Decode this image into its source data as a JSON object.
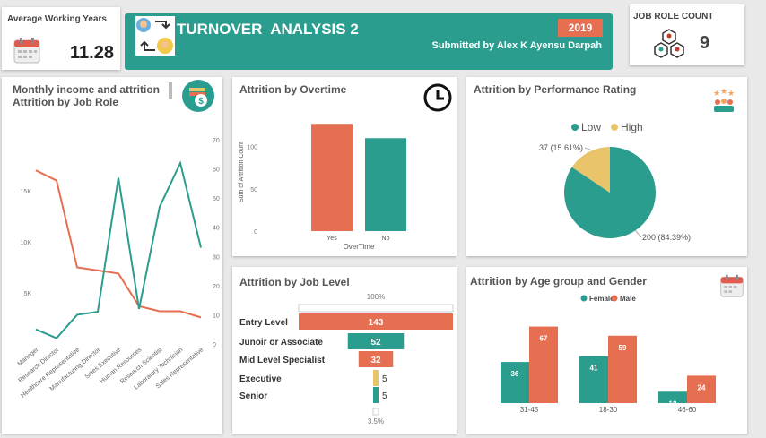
{
  "avg_years": {
    "label": "Average Working Years",
    "value": "11.28"
  },
  "header": {
    "title": "TURNOVER  ANALYSIS 2",
    "year": "2019",
    "submitted": "Submitted by Alex K Ayensu Darpah"
  },
  "role_count": {
    "label": "JOB ROLE COUNT",
    "value": "9"
  },
  "colors": {
    "teal": "#2a9d8f",
    "orange": "#e76f51",
    "yellow": "#e9c46a"
  },
  "chart_data": [
    {
      "type": "line",
      "title": "Monthly income and attrition Attrition by Job Role",
      "categories": [
        "Manager",
        "Research Director",
        "Healthcare Representative",
        "Manufacturing Director",
        "Sales Executive",
        "Human Resources",
        "Research Scientist",
        "Laboratory Technician",
        "Sales Representative"
      ],
      "left_ticks": [
        "15K",
        "10K",
        "5K"
      ],
      "right_ticks": [
        "70",
        "60",
        "50",
        "40",
        "30",
        "20",
        "10",
        "0"
      ],
      "series": [
        {
          "values": [
            17000,
            16000,
            7500,
            7200,
            6900,
            3700,
            3200,
            3200,
            2600
          ],
          "axis": "left",
          "color": "#e76f51"
        },
        {
          "values": [
            5,
            2,
            10,
            11,
            57,
            12,
            47,
            62,
            33
          ],
          "axis": "right",
          "color": "#2a9d8f"
        }
      ],
      "ylim_left": [
        0,
        20000
      ],
      "ylim_right": [
        0,
        70
      ]
    },
    {
      "type": "bar",
      "title": "Attrition by Overtime",
      "categories": [
        "Yes",
        "No"
      ],
      "values": [
        127,
        110
      ],
      "ylabel": "Sum of Attrition Count",
      "xlabel": "OverTime",
      "yticks": [
        "100",
        "50",
        "0"
      ],
      "ylim": [
        0,
        140
      ],
      "colors": [
        "#e76f51",
        "#2a9d8f"
      ]
    },
    {
      "type": "pie",
      "title": "Attrition by Performance Rating",
      "legend": [
        "Low",
        "High"
      ],
      "values": [
        200,
        37
      ],
      "labels": [
        "200 (84.39%)",
        "37 (15.61%)"
      ],
      "colors": [
        "#2a9d8f",
        "#e9c46a"
      ]
    },
    {
      "type": "bar",
      "title": "Attrition by Job Level",
      "categories": [
        "Entry Level",
        "Junoir or Associate",
        "Mid Level Specialist",
        "Executive",
        "Senior"
      ],
      "values": [
        143,
        52,
        32,
        5,
        5
      ],
      "top_label": "100%",
      "bottom_label": "3.5%",
      "colors": [
        "#e76f51",
        "#2a9d8f",
        "#e76f51",
        "#e9c46a",
        "#2a9d8f"
      ]
    },
    {
      "type": "bar",
      "title": "Attrition by Age group and Gender",
      "categories": [
        "31-45",
        "18-30",
        "46-60"
      ],
      "series": [
        {
          "name": "Female",
          "values": [
            36,
            41,
            10
          ],
          "color": "#2a9d8f"
        },
        {
          "name": "Male",
          "values": [
            67,
            59,
            24
          ],
          "color": "#e76f51"
        }
      ],
      "ylim": [
        0,
        80
      ]
    }
  ]
}
